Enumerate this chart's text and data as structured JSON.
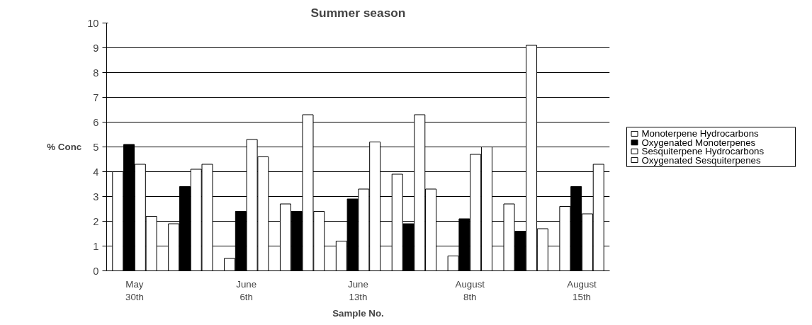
{
  "chart_data": {
    "type": "bar",
    "title": "Summer season",
    "xlabel": "Sample No.",
    "ylabel": "% Conc",
    "categories": [
      "May 30th",
      null,
      "June 6th",
      null,
      "June 13th",
      null,
      "August 8th",
      null,
      "August 15th"
    ],
    "series": [
      {
        "name": "Monoterpene Hydrocarbons",
        "color": "#ffffff",
        "values": [
          4.0,
          1.9,
          0.5,
          2.7,
          1.2,
          3.9,
          0.6,
          2.7,
          2.6
        ]
      },
      {
        "name": "Oxygenated Monoterpenes",
        "color": "#000000",
        "values": [
          5.1,
          3.4,
          2.4,
          2.4,
          2.9,
          1.9,
          2.1,
          1.6,
          3.4
        ]
      },
      {
        "name": "Sesquiterpene Hydrocarbons",
        "color": "#ffffff",
        "values": [
          4.3,
          4.1,
          5.3,
          6.3,
          3.3,
          6.3,
          4.7,
          9.1,
          2.3
        ]
      },
      {
        "name": "Oxygenated Sesquiterpenes",
        "color": "#ffffff",
        "values": [
          2.2,
          4.3,
          4.6,
          2.4,
          5.2,
          3.3,
          5.0,
          1.7,
          4.3
        ]
      }
    ],
    "ylim": [
      0,
      10
    ],
    "yticks": [
      0,
      1,
      2,
      3,
      4,
      5,
      6,
      7,
      8,
      9,
      10
    ],
    "grid": "y",
    "legend": "right"
  }
}
